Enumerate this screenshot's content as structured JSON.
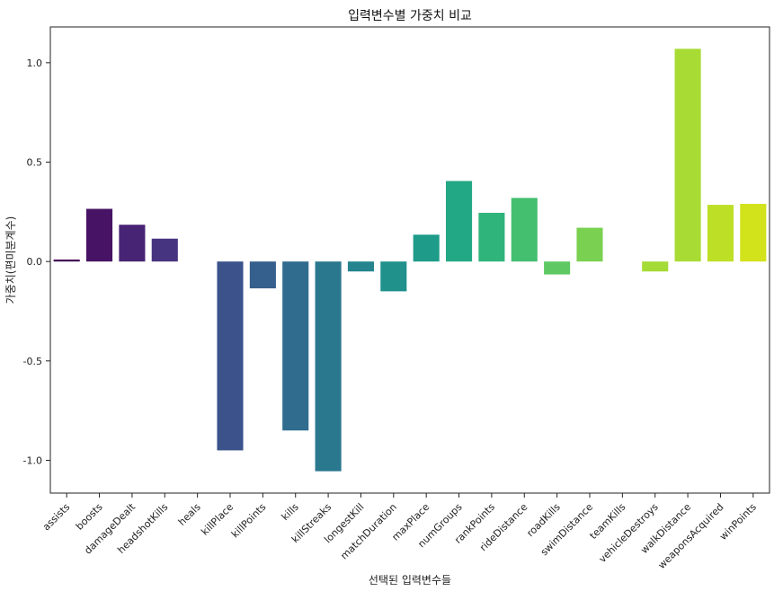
{
  "chart_data": {
    "type": "bar",
    "title": "입력변수별 가중치 비교",
    "xlabel": "선택된 입력변수들",
    "ylabel": "가중치(편미분계수)",
    "categories": [
      "assists",
      "boosts",
      "damageDealt",
      "headshotKills",
      "heals",
      "killPlace",
      "killPoints",
      "kills",
      "killStreaks",
      "longestKill",
      "matchDuration",
      "maxPlace",
      "numGroups",
      "rankPoints",
      "rideDistance",
      "roadKills",
      "swimDistance",
      "teamKills",
      "vehicleDestroys",
      "walkDistance",
      "weaponsAcquired",
      "winPoints"
    ],
    "values": [
      0.01,
      0.265,
      0.185,
      0.115,
      0.0,
      -0.95,
      -0.135,
      -0.85,
      -1.055,
      -0.05,
      -0.15,
      0.135,
      0.405,
      0.245,
      0.32,
      -0.065,
      0.17,
      0.0,
      -0.05,
      1.07,
      0.285,
      0.29
    ],
    "colors": [
      "#440154",
      "#471365",
      "#482475",
      "#463480",
      "#414487",
      "#3b528b",
      "#355f8d",
      "#2f6c8e",
      "#2a788e",
      "#25848e",
      "#21918c",
      "#1e9c89",
      "#22a884",
      "#2fb47c",
      "#44bf70",
      "#5ec962",
      "#7ad151",
      "#9bd93c",
      "#a5db36",
      "#a8db34",
      "#bddf26",
      "#d2e21b"
    ],
    "yticks": [
      1.0,
      0.5,
      0.0,
      -0.5,
      -1.0
    ],
    "ytick_labels": [
      "1.0",
      "0.5",
      "0.0",
      "-0.5",
      "-1.0"
    ],
    "ylim": [
      -1.165,
      1.18
    ],
    "grid": false,
    "legend": "none"
  }
}
